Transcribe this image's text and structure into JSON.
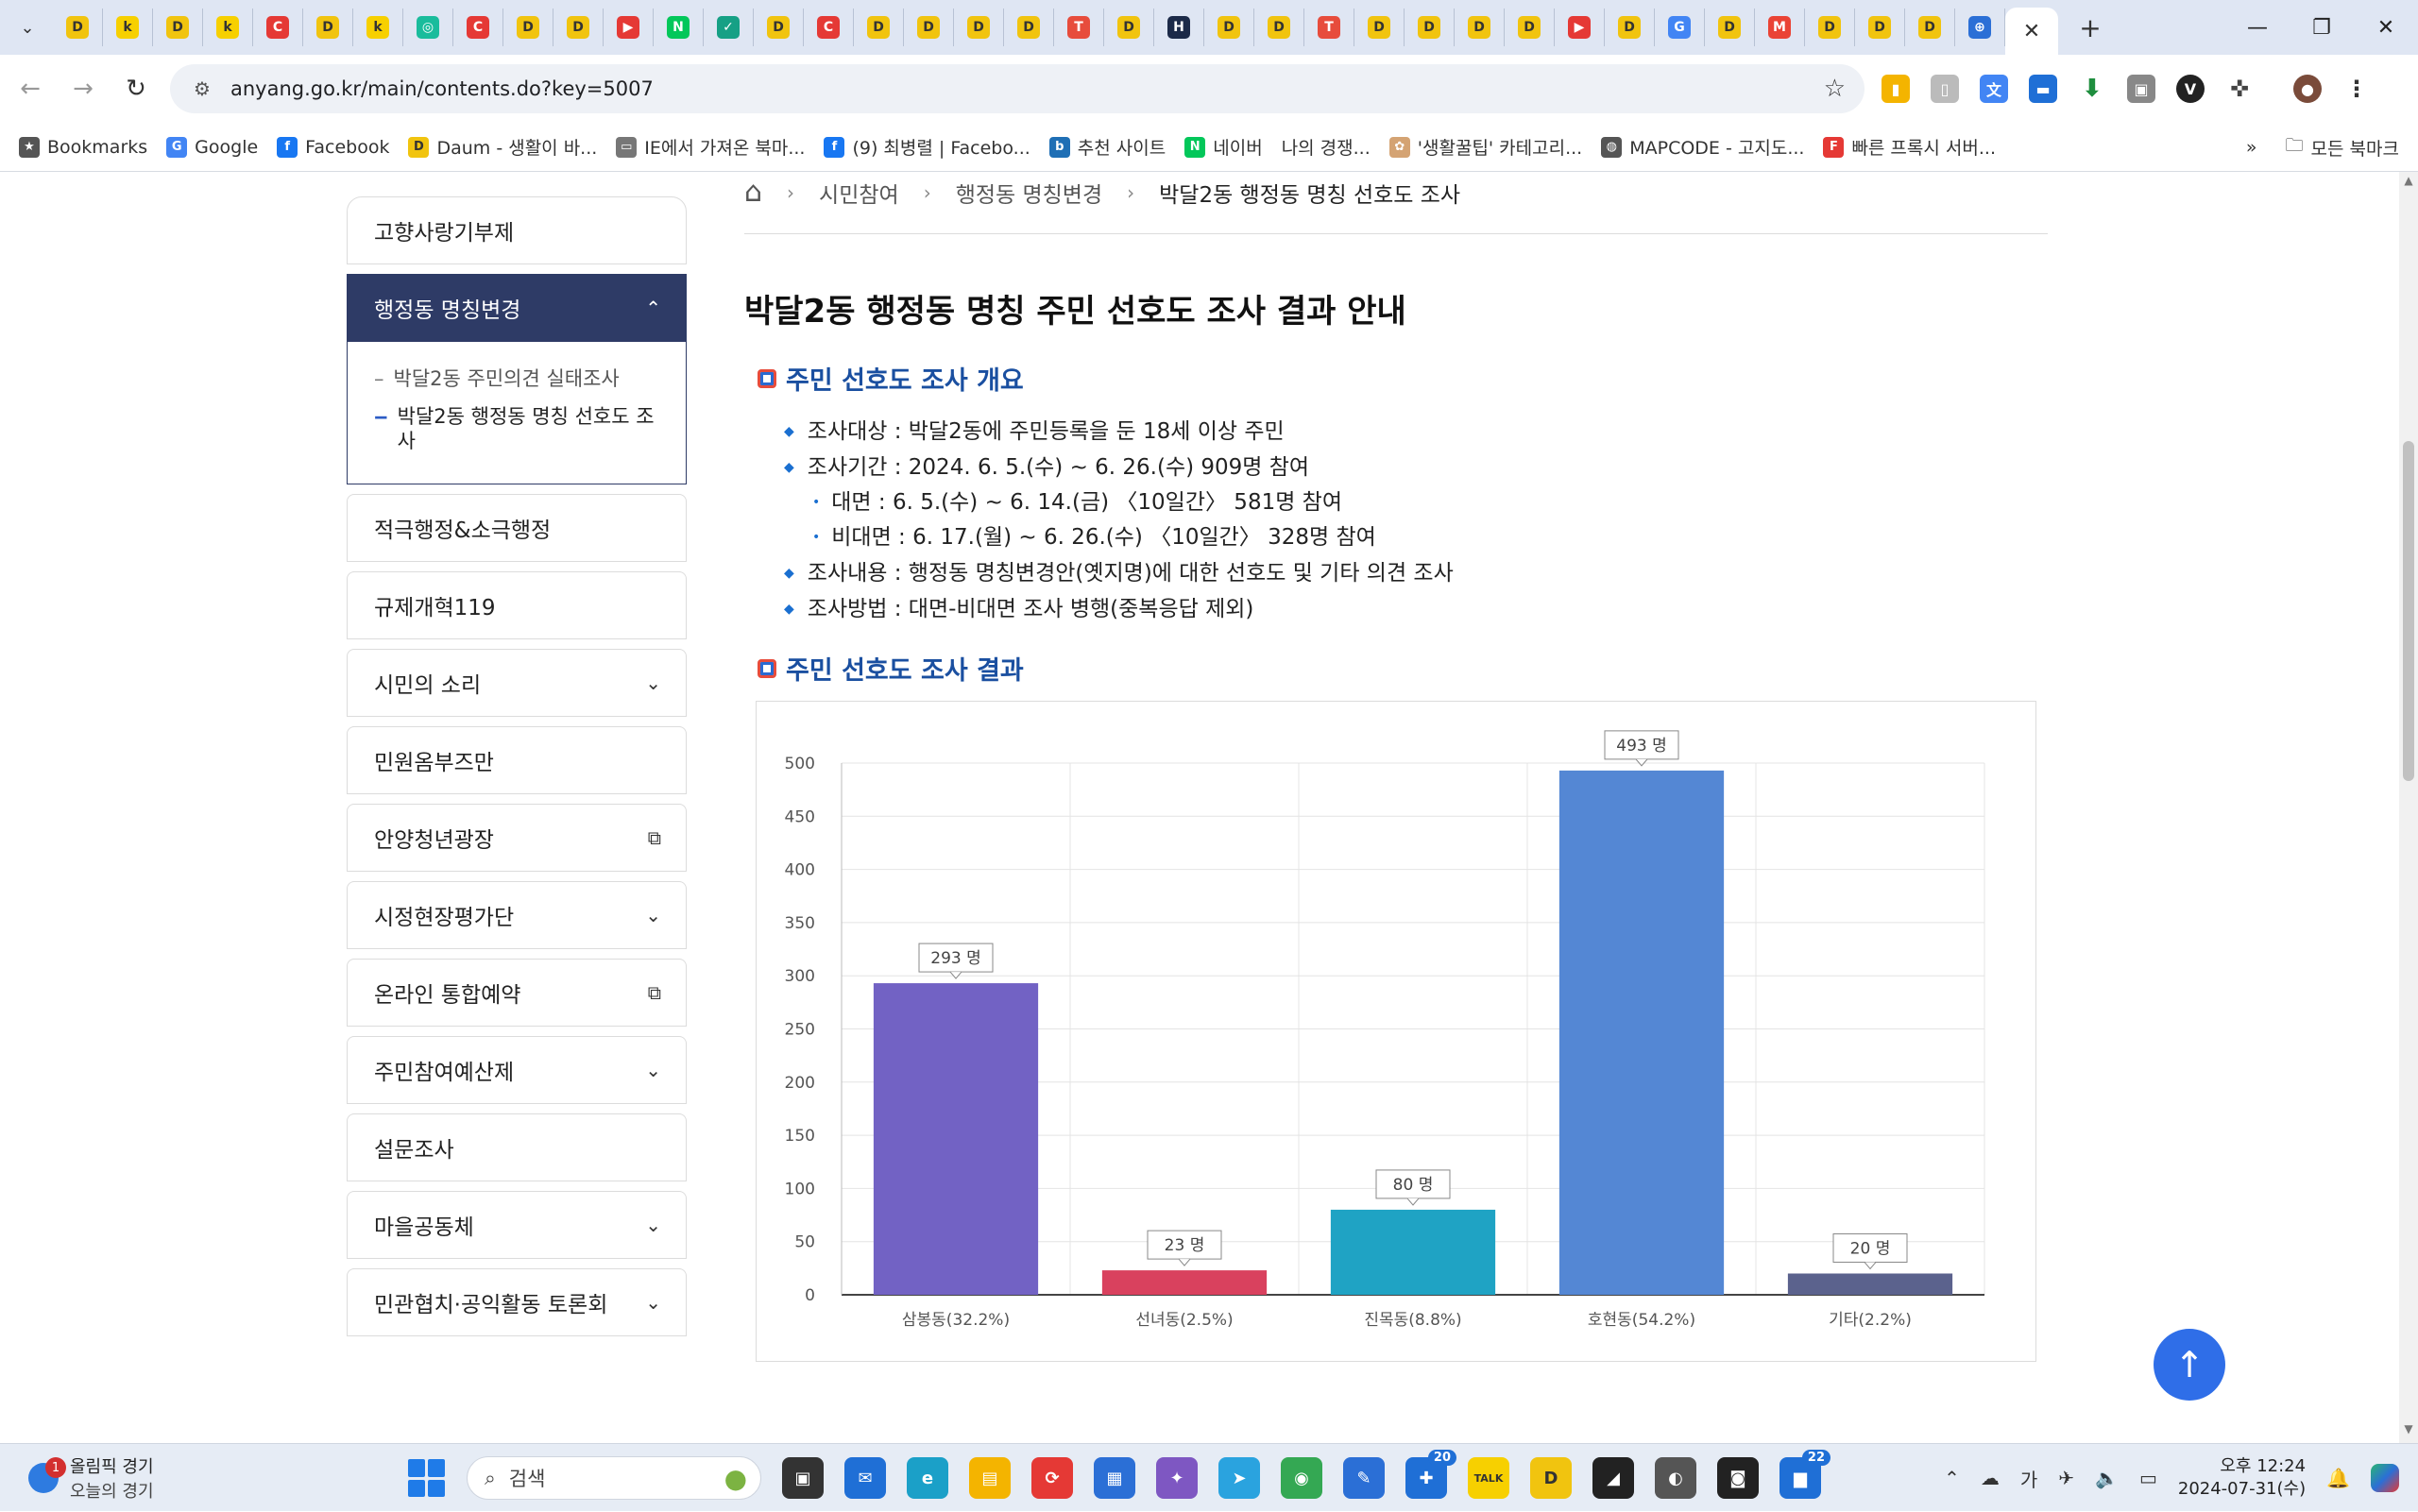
{
  "browser": {
    "tab_icons": [
      {
        "name": "daum",
        "glyph": "D",
        "color": "#f1c40f"
      },
      {
        "name": "kakao-k",
        "glyph": "k",
        "color": "#f7d000"
      },
      {
        "name": "daum",
        "glyph": "D",
        "color": "#f1c40f"
      },
      {
        "name": "kakao-k",
        "glyph": "k",
        "color": "#f7d000"
      },
      {
        "name": "c-red",
        "glyph": "C",
        "color": "#e53935"
      },
      {
        "name": "daum",
        "glyph": "D",
        "color": "#f1c40f"
      },
      {
        "name": "kakao-k",
        "glyph": "k",
        "color": "#f7d000"
      },
      {
        "name": "shop",
        "glyph": "◎",
        "color": "#1abc9c"
      },
      {
        "name": "c-red",
        "glyph": "C",
        "color": "#e53935"
      },
      {
        "name": "daum",
        "glyph": "D",
        "color": "#f1c40f"
      },
      {
        "name": "daum",
        "glyph": "D",
        "color": "#f1c40f"
      },
      {
        "name": "youtube",
        "glyph": "▶",
        "color": "#e53935"
      },
      {
        "name": "naver",
        "glyph": "N",
        "color": "#03c75a"
      },
      {
        "name": "check",
        "glyph": "✓",
        "color": "#16a085"
      },
      {
        "name": "daum",
        "glyph": "D",
        "color": "#f1c40f"
      },
      {
        "name": "c-red",
        "glyph": "C",
        "color": "#e53935"
      },
      {
        "name": "daum",
        "glyph": "D",
        "color": "#f1c40f"
      },
      {
        "name": "daum",
        "glyph": "D",
        "color": "#f1c40f"
      },
      {
        "name": "daum",
        "glyph": "D",
        "color": "#f1c40f"
      },
      {
        "name": "daum",
        "glyph": "D",
        "color": "#f1c40f"
      },
      {
        "name": "tistory",
        "glyph": "T",
        "color": "#e74c3c"
      },
      {
        "name": "daum",
        "glyph": "D",
        "color": "#f1c40f"
      },
      {
        "name": "h-letter",
        "glyph": "H",
        "color": "#1c2a48"
      },
      {
        "name": "daum",
        "glyph": "D",
        "color": "#f1c40f"
      },
      {
        "name": "daum",
        "glyph": "D",
        "color": "#f1c40f"
      },
      {
        "name": "tistory",
        "glyph": "T",
        "color": "#e74c3c"
      },
      {
        "name": "daum",
        "glyph": "D",
        "color": "#f1c40f"
      },
      {
        "name": "daum",
        "glyph": "D",
        "color": "#f1c40f"
      },
      {
        "name": "daum",
        "glyph": "D",
        "color": "#f1c40f"
      },
      {
        "name": "daum",
        "glyph": "D",
        "color": "#f1c40f"
      },
      {
        "name": "youtube",
        "glyph": "▶",
        "color": "#e53935"
      },
      {
        "name": "daum",
        "glyph": "D",
        "color": "#f1c40f"
      },
      {
        "name": "google",
        "glyph": "G",
        "color": "#4285f4"
      },
      {
        "name": "daum",
        "glyph": "D",
        "color": "#f1c40f"
      },
      {
        "name": "gmail",
        "glyph": "M",
        "color": "#ea4335"
      },
      {
        "name": "daum",
        "glyph": "D",
        "color": "#f1c40f"
      },
      {
        "name": "daum",
        "glyph": "D",
        "color": "#f1c40f"
      },
      {
        "name": "daum",
        "glyph": "D",
        "color": "#f1c40f"
      },
      {
        "name": "globe",
        "glyph": "⊕",
        "color": "#2b6fd6"
      }
    ],
    "address": {
      "url": "anyang.go.kr/main/contents.do?key=5007"
    },
    "bookmarks": [
      {
        "label": "Bookmarks",
        "icon": "★",
        "color": "#555555"
      },
      {
        "label": "Google",
        "icon": "G",
        "color": "#4285f4"
      },
      {
        "label": "Facebook",
        "icon": "f",
        "color": "#1877f2"
      },
      {
        "label": "Daum - 생활이 바...",
        "icon": "D",
        "color": "#f1c40f"
      },
      {
        "label": "IE에서 가져온 북마...",
        "icon": "▭",
        "color": "#777777"
      },
      {
        "label": "(9) 최병렬 | Facebo...",
        "icon": "f",
        "color": "#1877f2"
      },
      {
        "label": "추천 사이트",
        "icon": "b",
        "color": "#1f6fb5"
      },
      {
        "label": "네이버",
        "icon": "N",
        "color": "#03c75a"
      },
      {
        "label": "나의 경쟁...",
        "icon": "",
        "color": "#ffffff"
      },
      {
        "label": "'생활꿀팁' 카테고리...",
        "icon": "✿",
        "color": "#d4a373"
      },
      {
        "label": "MAPCODE - 고지도...",
        "icon": "◍",
        "color": "#555555"
      },
      {
        "label": "빠른 프록시 서버...",
        "icon": "F",
        "color": "#e53935"
      }
    ],
    "bookmarks_more": "»",
    "all_bookmarks": "모든 북마크"
  },
  "breadcrumb": {
    "items": [
      "시민참여",
      "행정동 명칭변경",
      "박달2동 행정동 명칭 선호도 조사"
    ]
  },
  "sidebar": {
    "items_top": [
      {
        "label": "고향사랑기부제",
        "arrow": ""
      }
    ],
    "active": {
      "label": "행정동 명칭변경",
      "arrow": "⌃",
      "subitems": [
        {
          "label": "박달2동 주민의견 실태조사",
          "active": false
        },
        {
          "label": "박달2동 행정동 명칭 선호도 조사",
          "active": true
        }
      ]
    },
    "items_bottom": [
      {
        "label": "적극행정&소극행정",
        "arrow": ""
      },
      {
        "label": "규제개혁119",
        "arrow": ""
      },
      {
        "label": "시민의 소리",
        "arrow": "⌄"
      },
      {
        "label": "민원옴부즈만",
        "arrow": ""
      },
      {
        "label": "안양청년광장",
        "arrow": "⧉"
      },
      {
        "label": "시정현장평가단",
        "arrow": "⌄"
      },
      {
        "label": "온라인 통합예약",
        "arrow": "⧉"
      },
      {
        "label": "주민참여예산제",
        "arrow": "⌄"
      },
      {
        "label": "설문조사",
        "arrow": ""
      },
      {
        "label": "마을공동체",
        "arrow": "⌄"
      },
      {
        "label": "민관협치·공익활동 토론회",
        "arrow": "⌄"
      }
    ]
  },
  "content": {
    "title": "박달2동 행정동 명칭 주민 선호도 조사 결과 안내",
    "section1": {
      "title": "주민 선호도 조사 개요",
      "bullets": [
        {
          "text": "조사대상 : 박달2동에 주민등록을 둔 18세 이상 주민",
          "sub": []
        },
        {
          "text": "조사기간 : 2024. 6. 5.(수) ~ 6. 26.(수) 909명 참여",
          "sub": [
            "대면 : 6. 5.(수) ~ 6. 14.(금) 〈10일간〉 581명 참여",
            "비대면 : 6. 17.(월) ~ 6. 26.(수) 〈10일간〉 328명 참여"
          ]
        },
        {
          "text": "조사내용 : 행정동 명칭변경안(옛지명)에 대한 선호도 및 기타 의견 조사",
          "sub": []
        },
        {
          "text": "조사방법 : 대면-비대면 조사 병행(중복응답 제외)",
          "sub": []
        }
      ]
    },
    "section2": {
      "title": "주민 선호도 조사 결과"
    }
  },
  "chart_data": {
    "type": "bar",
    "categories": [
      "삼봉동(32.2%)",
      "선녀동(2.5%)",
      "진목동(8.8%)",
      "호현동(54.2%)",
      "기타(2.2%)"
    ],
    "values": [
      293,
      23,
      80,
      493,
      20
    ],
    "data_labels": [
      "293 명",
      "23 명",
      "80 명",
      "493 명",
      "20 명"
    ],
    "colors": [
      "#7262c4",
      "#d9415e",
      "#1fa3c4",
      "#5487d4",
      "#5b628d"
    ],
    "ylim": [
      0,
      500
    ],
    "yticks": [
      0,
      50,
      100,
      150,
      200,
      250,
      300,
      350,
      400,
      450,
      500
    ],
    "grid": true,
    "legend": "none"
  },
  "top_button": {
    "icon": "↑"
  },
  "taskbar": {
    "weather_badge": "1",
    "weather_line1": "올림픽 경기",
    "weather_line2": "오늘의 경기",
    "search_placeholder": "검색",
    "apps": [
      {
        "name": "task-view",
        "glyph": "▣",
        "color": "#333333",
        "badge": ""
      },
      {
        "name": "mail",
        "glyph": "✉",
        "color": "#1f6fd6",
        "badge": ""
      },
      {
        "name": "edge",
        "glyph": "e",
        "color": "#1ba0c8",
        "badge": ""
      },
      {
        "name": "explorer",
        "glyph": "▤",
        "color": "#f4b400",
        "badge": ""
      },
      {
        "name": "sync",
        "glyph": "⟳",
        "color": "#e53935",
        "badge": ""
      },
      {
        "name": "store",
        "glyph": "▦",
        "color": "#2b6fd6",
        "badge": ""
      },
      {
        "name": "copilot",
        "glyph": "✦",
        "color": "#7e57c2",
        "badge": ""
      },
      {
        "name": "telegram",
        "glyph": "➤",
        "color": "#2aa3df",
        "badge": ""
      },
      {
        "name": "chrome",
        "glyph": "◉",
        "color": "#34a853",
        "badge": ""
      },
      {
        "name": "editor",
        "glyph": "✎",
        "color": "#2b6fd6",
        "badge": ""
      },
      {
        "name": "messenger",
        "glyph": "✚",
        "color": "#1f6fd6",
        "badge": "20"
      },
      {
        "name": "kakaotalk",
        "glyph": "TALK",
        "color": "#f7d000",
        "badge": ""
      },
      {
        "name": "daum-app",
        "glyph": "D",
        "color": "#f1c40f",
        "badge": ""
      },
      {
        "name": "notes",
        "glyph": "◢",
        "color": "#222222",
        "badge": ""
      },
      {
        "name": "media",
        "glyph": "◐",
        "color": "#555555",
        "badge": ""
      },
      {
        "name": "camera",
        "glyph": "◙",
        "color": "#222222",
        "badge": ""
      },
      {
        "name": "teams",
        "glyph": "▆",
        "color": "#1f6fd6",
        "badge": "22"
      }
    ],
    "tray_ime": "가",
    "clock_line1": "오후 12:24",
    "clock_line2": "2024-07-31(수)"
  }
}
